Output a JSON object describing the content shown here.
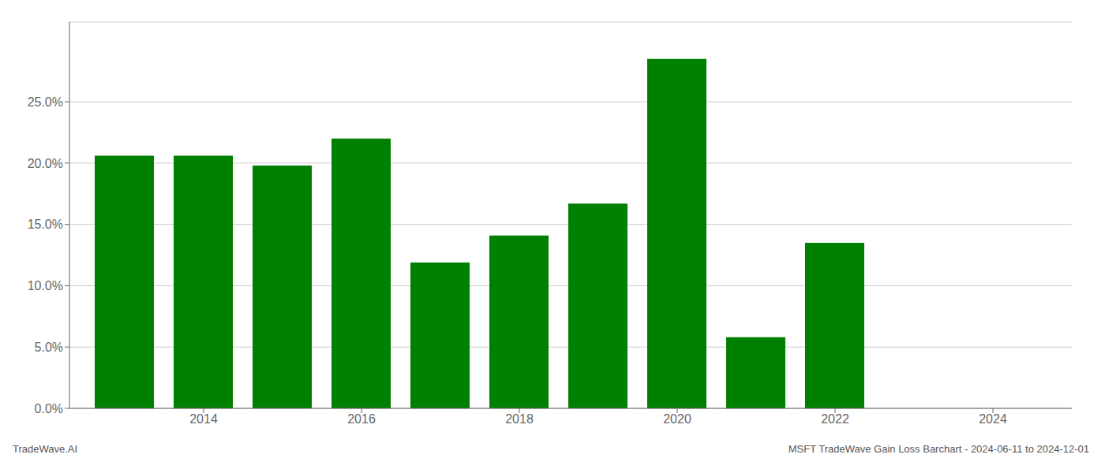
{
  "chart_data": {
    "type": "bar",
    "x": [
      2013,
      2014,
      2015,
      2016,
      2017,
      2018,
      2019,
      2020,
      2021,
      2022
    ],
    "values": [
      0.206,
      0.206,
      0.198,
      0.22,
      0.119,
      0.141,
      0.167,
      0.285,
      0.058,
      0.135
    ],
    "color": "#008000",
    "xlim": [
      2012.3,
      2025.0
    ],
    "xticks": [
      2014,
      2016,
      2018,
      2020,
      2022,
      2024
    ],
    "ylim": [
      0.0,
      0.315
    ],
    "yticks": [
      {
        "value": 0.0,
        "label": "0.0%"
      },
      {
        "value": 0.05,
        "label": "5.0%"
      },
      {
        "value": 0.1,
        "label": "10.0%"
      },
      {
        "value": 0.15,
        "label": "15.0%"
      },
      {
        "value": 0.2,
        "label": "20.0%"
      },
      {
        "value": 0.25,
        "label": "25.0%"
      }
    ],
    "grid": true,
    "annotations": [
      "TradeWave.AI",
      "MSFT TradeWave Gain Loss Barchart - 2024-06-11 to 2024-12-01"
    ]
  }
}
